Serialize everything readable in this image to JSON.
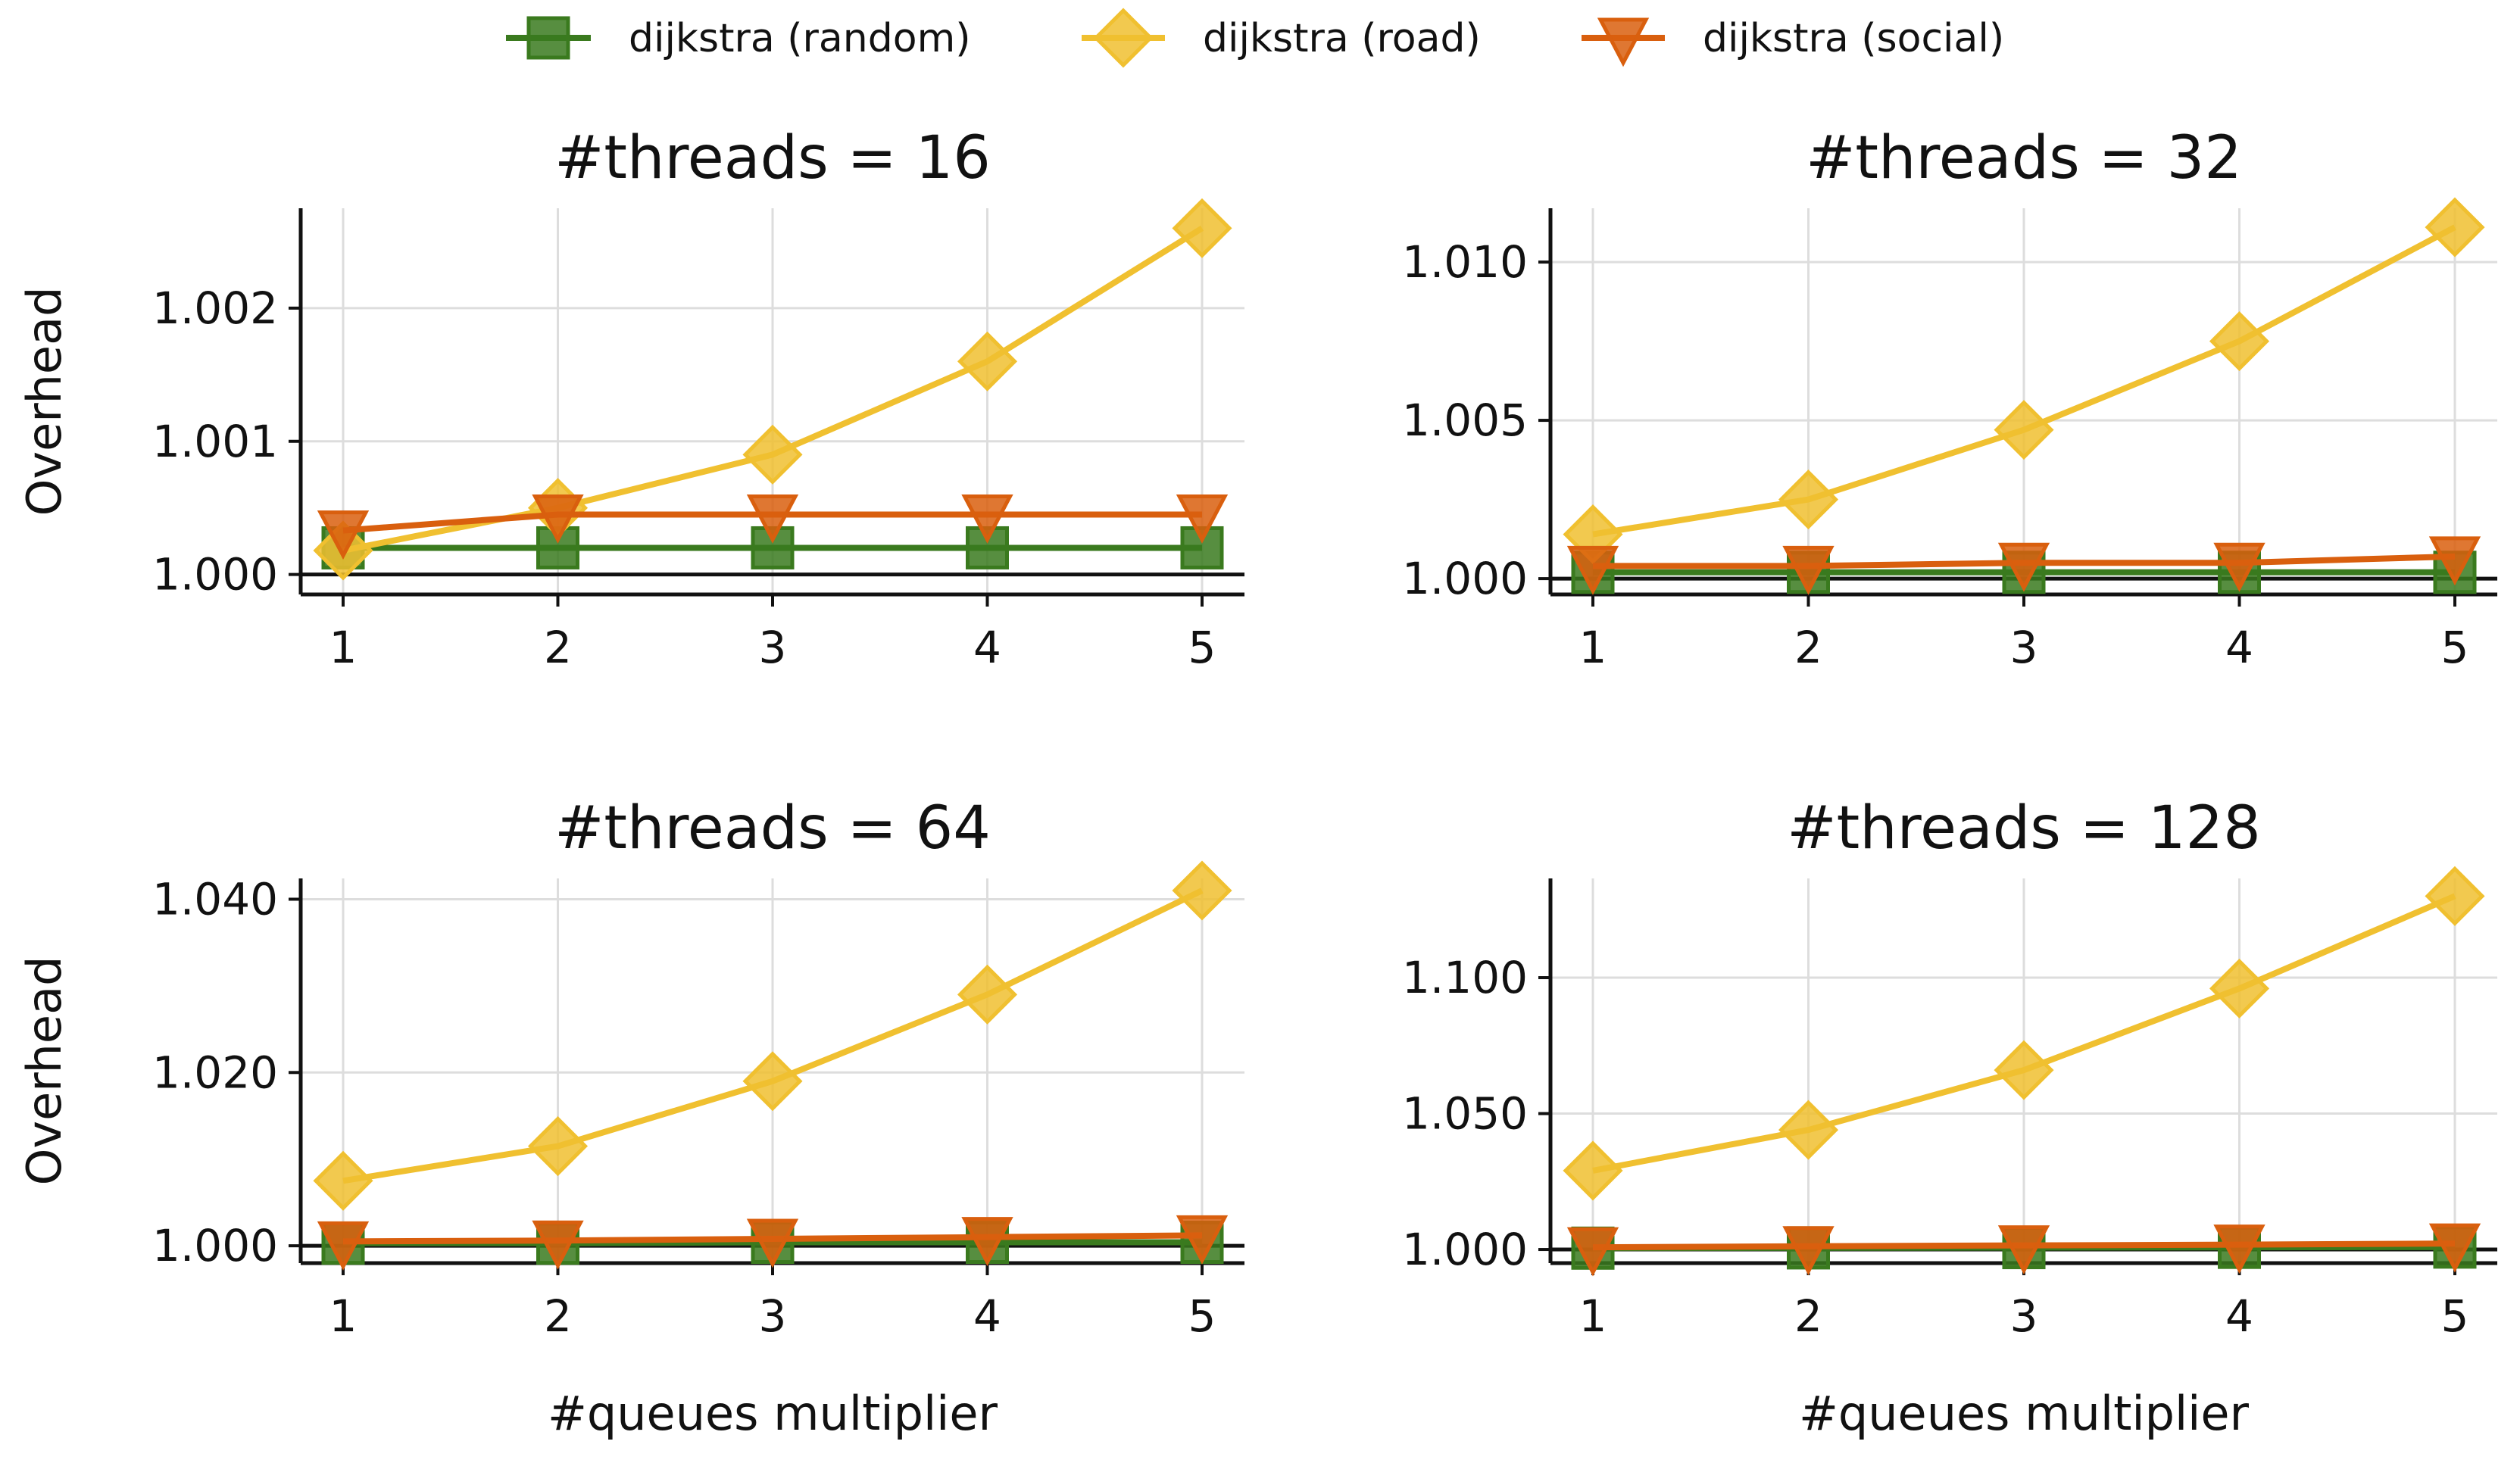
{
  "legend": [
    {
      "key": "random",
      "name": "dijkstra (random)",
      "color": "#3a7a1e",
      "marker": "square"
    },
    {
      "key": "road",
      "name": "dijkstra (road)",
      "color": "#f0c030",
      "marker": "diamond"
    },
    {
      "key": "social",
      "name": "dijkstra (social)",
      "color": "#d95f0e",
      "marker": "triangle-down"
    }
  ],
  "chart_data": [
    {
      "type": "line",
      "title": "#threads = 16",
      "xlabel": "",
      "ylabel": "Overhead",
      "x": [
        1,
        2,
        3,
        4,
        5
      ],
      "xticks": [
        "1",
        "2",
        "3",
        "4",
        "5"
      ],
      "ylim": [
        0.99985,
        1.00275
      ],
      "yticks": [
        1.0,
        1.001,
        1.002
      ],
      "yticklabels": [
        "1.000",
        "1.001",
        "1.002"
      ],
      "grid": true,
      "series": [
        {
          "name": "dijkstra (random)",
          "values": [
            1.0002,
            1.0002,
            1.0002,
            1.0002,
            1.0002
          ]
        },
        {
          "name": "dijkstra (road)",
          "values": [
            1.00018,
            1.0005,
            1.0009,
            1.0016,
            1.0026
          ]
        },
        {
          "name": "dijkstra (social)",
          "values": [
            1.00033,
            1.00045,
            1.00045,
            1.00045,
            1.00045
          ]
        }
      ]
    },
    {
      "type": "line",
      "title": "#threads = 32",
      "xlabel": "",
      "ylabel": "",
      "x": [
        1,
        2,
        3,
        4,
        5
      ],
      "xticks": [
        "1",
        "2",
        "3",
        "4",
        "5"
      ],
      "ylim": [
        0.9995,
        1.0117
      ],
      "yticks": [
        1.0,
        1.005,
        1.01
      ],
      "yticklabels": [
        "1.000",
        "1.005",
        "1.010"
      ],
      "grid": true,
      "series": [
        {
          "name": "dijkstra (random)",
          "values": [
            1.0002,
            1.0002,
            1.0002,
            1.0002,
            1.0002
          ]
        },
        {
          "name": "dijkstra (road)",
          "values": [
            1.0014,
            1.0025,
            1.0047,
            1.0075,
            1.0111
          ]
        },
        {
          "name": "dijkstra (social)",
          "values": [
            1.0004,
            1.0004,
            1.0005,
            1.0005,
            1.0007
          ]
        }
      ]
    },
    {
      "type": "line",
      "title": "#threads = 64",
      "xlabel": "#queues multiplier",
      "ylabel": "Overhead",
      "x": [
        1,
        2,
        3,
        4,
        5
      ],
      "xticks": [
        "1",
        "2",
        "3",
        "4",
        "5"
      ],
      "ylim": [
        0.998,
        1.0424
      ],
      "yticks": [
        1.0,
        1.02,
        1.04
      ],
      "yticklabels": [
        "1.000",
        "1.020",
        "1.040"
      ],
      "grid": true,
      "series": [
        {
          "name": "dijkstra (random)",
          "values": [
            1.0003,
            1.0003,
            1.0004,
            1.0004,
            1.0004
          ]
        },
        {
          "name": "dijkstra (road)",
          "values": [
            1.0075,
            1.0115,
            1.019,
            1.029,
            1.041
          ]
        },
        {
          "name": "dijkstra (social)",
          "values": [
            1.0005,
            1.0006,
            1.0008,
            1.001,
            1.0012
          ]
        }
      ]
    },
    {
      "type": "line",
      "title": "#threads = 128",
      "xlabel": "#queues multiplier",
      "ylabel": "",
      "x": [
        1,
        2,
        3,
        4,
        5
      ],
      "xticks": [
        "1",
        "2",
        "3",
        "4",
        "5"
      ],
      "ylim": [
        0.995,
        1.1365
      ],
      "yticks": [
        1.0,
        1.05,
        1.1
      ],
      "yticklabels": [
        "1.000",
        "1.050",
        "1.100"
      ],
      "grid": true,
      "series": [
        {
          "name": "dijkstra (random)",
          "values": [
            1.0005,
            1.0006,
            1.0007,
            1.0008,
            1.0009
          ]
        },
        {
          "name": "dijkstra (road)",
          "values": [
            1.029,
            1.044,
            1.066,
            1.096,
            1.13
          ]
        },
        {
          "name": "dijkstra (social)",
          "values": [
            1.0008,
            1.0012,
            1.0015,
            1.0018,
            1.0022
          ]
        }
      ]
    }
  ]
}
